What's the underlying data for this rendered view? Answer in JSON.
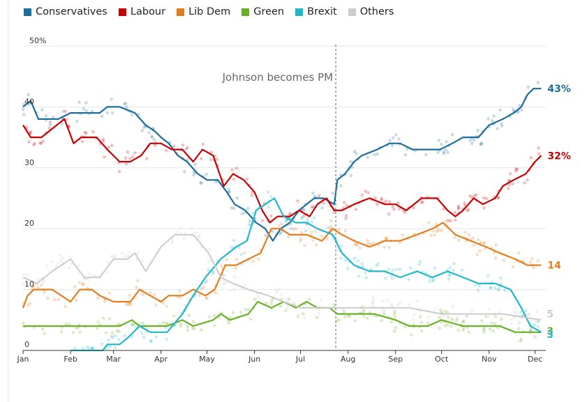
{
  "chart_data": {
    "type": "line",
    "title": "",
    "xlabel": "",
    "ylabel": "",
    "ylim": [
      0,
      50
    ],
    "y_ticks": [
      {
        "value": 0,
        "label": "0"
      },
      {
        "value": 10,
        "label": "10"
      },
      {
        "value": 20,
        "label": "20"
      },
      {
        "value": 30,
        "label": "30"
      },
      {
        "value": 40,
        "label": "40"
      },
      {
        "value": 50,
        "label": "50%"
      }
    ],
    "x_ticks": [
      {
        "date": "2019-01-01",
        "label": "Jan"
      },
      {
        "date": "2019-02-01",
        "label": "Feb"
      },
      {
        "date": "2019-03-01",
        "label": "Mar"
      },
      {
        "date": "2019-04-01",
        "label": "Apr"
      },
      {
        "date": "2019-05-01",
        "label": "May"
      },
      {
        "date": "2019-06-01",
        "label": "Jun"
      },
      {
        "date": "2019-07-01",
        "label": "Jul"
      },
      {
        "date": "2019-08-01",
        "label": "Aug"
      },
      {
        "date": "2019-09-01",
        "label": "Sep"
      },
      {
        "date": "2019-10-01",
        "label": "Oct"
      },
      {
        "date": "2019-11-01",
        "label": "Nov"
      },
      {
        "date": "2019-12-01",
        "label": "Dec"
      }
    ],
    "grid": true,
    "legend_position": "top",
    "annotation": {
      "date": "2019-07-24",
      "text": "Johnson becomes PM"
    },
    "series": [
      {
        "name": "Conservatives",
        "color": "#1b6e9b",
        "end_label": "43%",
        "points": [
          [
            "2019-01-01",
            40
          ],
          [
            "2019-01-06",
            41
          ],
          [
            "2019-01-11",
            38
          ],
          [
            "2019-01-24",
            38
          ],
          [
            "2019-02-01",
            39
          ],
          [
            "2019-02-20",
            39
          ],
          [
            "2019-02-25",
            40
          ],
          [
            "2019-03-05",
            40
          ],
          [
            "2019-03-15",
            39
          ],
          [
            "2019-03-22",
            37
          ],
          [
            "2019-03-28",
            36
          ],
          [
            "2019-04-01",
            35
          ],
          [
            "2019-04-06",
            34
          ],
          [
            "2019-04-12",
            32
          ],
          [
            "2019-04-18",
            31
          ],
          [
            "2019-04-25",
            29
          ],
          [
            "2019-05-01",
            28
          ],
          [
            "2019-05-08",
            28
          ],
          [
            "2019-05-14",
            26
          ],
          [
            "2019-05-19",
            24
          ],
          [
            "2019-05-26",
            23
          ],
          [
            "2019-06-02",
            21
          ],
          [
            "2019-06-08",
            20
          ],
          [
            "2019-06-13",
            18
          ],
          [
            "2019-06-18",
            20
          ],
          [
            "2019-06-24",
            21
          ],
          [
            "2019-06-30",
            23
          ],
          [
            "2019-07-05",
            24
          ],
          [
            "2019-07-10",
            25
          ],
          [
            "2019-07-16",
            25
          ],
          [
            "2019-07-23",
            24
          ],
          [
            "2019-07-25",
            28
          ],
          [
            "2019-07-30",
            29
          ],
          [
            "2019-08-05",
            31
          ],
          [
            "2019-08-10",
            32
          ],
          [
            "2019-08-20",
            33
          ],
          [
            "2019-08-28",
            34
          ],
          [
            "2019-09-04",
            34
          ],
          [
            "2019-09-12",
            33
          ],
          [
            "2019-09-20",
            33
          ],
          [
            "2019-09-30",
            33
          ],
          [
            "2019-10-08",
            34
          ],
          [
            "2019-10-15",
            35
          ],
          [
            "2019-10-25",
            35
          ],
          [
            "2019-11-01",
            37
          ],
          [
            "2019-11-10",
            38
          ],
          [
            "2019-11-17",
            39
          ],
          [
            "2019-11-22",
            40
          ],
          [
            "2019-11-26",
            42
          ],
          [
            "2019-11-30",
            43
          ],
          [
            "2019-12-05",
            43
          ]
        ]
      },
      {
        "name": "Labour",
        "color": "#c70000",
        "end_label": "32%",
        "points": [
          [
            "2019-01-01",
            37
          ],
          [
            "2019-01-06",
            35
          ],
          [
            "2019-01-13",
            35
          ],
          [
            "2019-01-18",
            36
          ],
          [
            "2019-01-28",
            38
          ],
          [
            "2019-02-03",
            34
          ],
          [
            "2019-02-08",
            35
          ],
          [
            "2019-02-18",
            35
          ],
          [
            "2019-02-25",
            33
          ],
          [
            "2019-03-05",
            31
          ],
          [
            "2019-03-12",
            31
          ],
          [
            "2019-03-19",
            32
          ],
          [
            "2019-03-25",
            34
          ],
          [
            "2019-04-01",
            34
          ],
          [
            "2019-04-08",
            33
          ],
          [
            "2019-04-15",
            33
          ],
          [
            "2019-04-22",
            31
          ],
          [
            "2019-04-28",
            33
          ],
          [
            "2019-05-05",
            32
          ],
          [
            "2019-05-12",
            27
          ],
          [
            "2019-05-18",
            29
          ],
          [
            "2019-05-25",
            28
          ],
          [
            "2019-06-01",
            26
          ],
          [
            "2019-06-06",
            23
          ],
          [
            "2019-06-11",
            21
          ],
          [
            "2019-06-16",
            22
          ],
          [
            "2019-06-24",
            22
          ],
          [
            "2019-06-30",
            23
          ],
          [
            "2019-07-07",
            22
          ],
          [
            "2019-07-12",
            24
          ],
          [
            "2019-07-18",
            25
          ],
          [
            "2019-07-23",
            23
          ],
          [
            "2019-07-28",
            23
          ],
          [
            "2019-08-05",
            24
          ],
          [
            "2019-08-15",
            25
          ],
          [
            "2019-08-25",
            24
          ],
          [
            "2019-09-01",
            24
          ],
          [
            "2019-09-08",
            23
          ],
          [
            "2019-09-18",
            25
          ],
          [
            "2019-09-28",
            25
          ],
          [
            "2019-10-05",
            23
          ],
          [
            "2019-10-10",
            22
          ],
          [
            "2019-10-15",
            23
          ],
          [
            "2019-10-22",
            25
          ],
          [
            "2019-10-28",
            24
          ],
          [
            "2019-11-05",
            25
          ],
          [
            "2019-11-10",
            27
          ],
          [
            "2019-11-17",
            28
          ],
          [
            "2019-11-25",
            29
          ],
          [
            "2019-12-01",
            31
          ],
          [
            "2019-12-05",
            32
          ]
        ]
      },
      {
        "name": "Lib Dem",
        "color": "#e57d1d",
        "end_label": "14",
        "points": [
          [
            "2019-01-01",
            7
          ],
          [
            "2019-01-04",
            9
          ],
          [
            "2019-01-08",
            10
          ],
          [
            "2019-01-20",
            10
          ],
          [
            "2019-02-01",
            8
          ],
          [
            "2019-02-07",
            10
          ],
          [
            "2019-02-15",
            10
          ],
          [
            "2019-02-20",
            9
          ],
          [
            "2019-03-01",
            8
          ],
          [
            "2019-03-12",
            8
          ],
          [
            "2019-03-18",
            10
          ],
          [
            "2019-03-25",
            9
          ],
          [
            "2019-04-01",
            8
          ],
          [
            "2019-04-06",
            9
          ],
          [
            "2019-04-15",
            9
          ],
          [
            "2019-04-22",
            10
          ],
          [
            "2019-04-30",
            9
          ],
          [
            "2019-05-06",
            10
          ],
          [
            "2019-05-13",
            14
          ],
          [
            "2019-05-20",
            14
          ],
          [
            "2019-05-28",
            15
          ],
          [
            "2019-06-05",
            16
          ],
          [
            "2019-06-12",
            20
          ],
          [
            "2019-06-18",
            20
          ],
          [
            "2019-06-24",
            19
          ],
          [
            "2019-07-05",
            19
          ],
          [
            "2019-07-15",
            18
          ],
          [
            "2019-07-22",
            20
          ],
          [
            "2019-07-28",
            19
          ],
          [
            "2019-08-05",
            18
          ],
          [
            "2019-08-15",
            17
          ],
          [
            "2019-08-25",
            18
          ],
          [
            "2019-09-04",
            18
          ],
          [
            "2019-09-15",
            19
          ],
          [
            "2019-09-25",
            20
          ],
          [
            "2019-10-02",
            21
          ],
          [
            "2019-10-10",
            19
          ],
          [
            "2019-10-20",
            18
          ],
          [
            "2019-10-30",
            17
          ],
          [
            "2019-11-08",
            16
          ],
          [
            "2019-11-18",
            15
          ],
          [
            "2019-11-26",
            14
          ],
          [
            "2019-12-05",
            14
          ]
        ]
      },
      {
        "name": "Green",
        "color": "#6ab023",
        "end_label": "3",
        "points": [
          [
            "2019-01-01",
            4
          ],
          [
            "2019-01-20",
            4
          ],
          [
            "2019-02-10",
            4
          ],
          [
            "2019-03-05",
            4
          ],
          [
            "2019-03-13",
            5
          ],
          [
            "2019-03-18",
            4
          ],
          [
            "2019-04-05",
            4
          ],
          [
            "2019-04-15",
            5
          ],
          [
            "2019-04-22",
            4
          ],
          [
            "2019-05-05",
            5
          ],
          [
            "2019-05-10",
            6
          ],
          [
            "2019-05-16",
            5
          ],
          [
            "2019-05-28",
            6
          ],
          [
            "2019-06-03",
            8
          ],
          [
            "2019-06-12",
            7
          ],
          [
            "2019-06-20",
            8
          ],
          [
            "2019-06-28",
            7
          ],
          [
            "2019-07-05",
            8
          ],
          [
            "2019-07-12",
            7
          ],
          [
            "2019-07-20",
            7
          ],
          [
            "2019-07-25",
            6
          ],
          [
            "2019-08-05",
            6
          ],
          [
            "2019-08-18",
            6
          ],
          [
            "2019-09-01",
            5
          ],
          [
            "2019-09-10",
            4
          ],
          [
            "2019-09-22",
            4
          ],
          [
            "2019-10-01",
            5
          ],
          [
            "2019-10-15",
            4
          ],
          [
            "2019-10-28",
            4
          ],
          [
            "2019-11-08",
            4
          ],
          [
            "2019-11-18",
            3
          ],
          [
            "2019-12-05",
            3
          ]
        ]
      },
      {
        "name": "Brexit",
        "color": "#20b8c8",
        "end_label": "3",
        "points": [
          [
            "2019-02-01",
            0
          ],
          [
            "2019-02-22",
            0
          ],
          [
            "2019-02-25",
            1
          ],
          [
            "2019-03-05",
            1
          ],
          [
            "2019-03-10",
            2
          ],
          [
            "2019-03-18",
            4
          ],
          [
            "2019-03-25",
            3
          ],
          [
            "2019-04-05",
            3
          ],
          [
            "2019-04-15",
            6
          ],
          [
            "2019-04-22",
            9
          ],
          [
            "2019-04-30",
            12
          ],
          [
            "2019-05-10",
            15
          ],
          [
            "2019-05-20",
            17
          ],
          [
            "2019-05-27",
            18
          ],
          [
            "2019-06-02",
            23
          ],
          [
            "2019-06-08",
            24
          ],
          [
            "2019-06-14",
            25
          ],
          [
            "2019-06-20",
            22
          ],
          [
            "2019-06-28",
            21
          ],
          [
            "2019-07-05",
            21
          ],
          [
            "2019-07-12",
            20
          ],
          [
            "2019-07-22",
            19
          ],
          [
            "2019-07-28",
            16
          ],
          [
            "2019-08-05",
            14
          ],
          [
            "2019-08-15",
            13
          ],
          [
            "2019-08-25",
            13
          ],
          [
            "2019-09-04",
            12
          ],
          [
            "2019-09-15",
            13
          ],
          [
            "2019-09-25",
            12
          ],
          [
            "2019-10-05",
            13
          ],
          [
            "2019-10-15",
            12
          ],
          [
            "2019-10-25",
            11
          ],
          [
            "2019-11-05",
            11
          ],
          [
            "2019-11-15",
            10
          ],
          [
            "2019-11-22",
            7
          ],
          [
            "2019-11-28",
            4
          ],
          [
            "2019-12-05",
            3
          ]
        ]
      },
      {
        "name": "Others",
        "color": "#cccccc",
        "end_label": "5",
        "points": [
          [
            "2019-01-01",
            12
          ],
          [
            "2019-01-10",
            11
          ],
          [
            "2019-01-20",
            13
          ],
          [
            "2019-02-01",
            15
          ],
          [
            "2019-02-10",
            12
          ],
          [
            "2019-02-20",
            12
          ],
          [
            "2019-03-01",
            15
          ],
          [
            "2019-03-10",
            15
          ],
          [
            "2019-03-15",
            16
          ],
          [
            "2019-03-22",
            13
          ],
          [
            "2019-04-01",
            17
          ],
          [
            "2019-04-10",
            19
          ],
          [
            "2019-04-22",
            19
          ],
          [
            "2019-05-02",
            16
          ],
          [
            "2019-05-10",
            12
          ],
          [
            "2019-05-18",
            11
          ],
          [
            "2019-05-28",
            10
          ],
          [
            "2019-06-10",
            9
          ],
          [
            "2019-06-20",
            8
          ],
          [
            "2019-07-01",
            7
          ],
          [
            "2019-07-15",
            7
          ],
          [
            "2019-08-01",
            7
          ],
          [
            "2019-08-20",
            7
          ],
          [
            "2019-09-10",
            7
          ],
          [
            "2019-10-01",
            6
          ],
          [
            "2019-10-20",
            6
          ],
          [
            "2019-11-10",
            6
          ],
          [
            "2019-12-05",
            5
          ]
        ]
      }
    ]
  }
}
